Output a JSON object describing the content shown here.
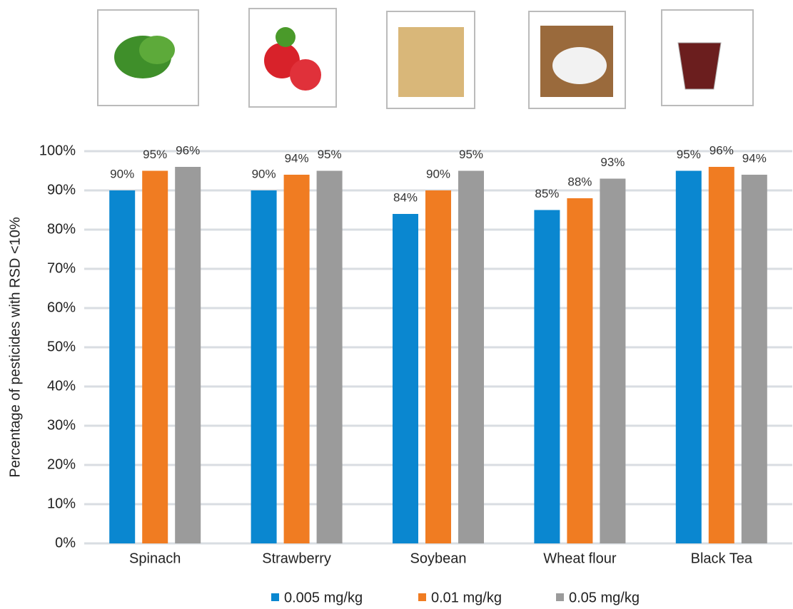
{
  "chart_data": {
    "type": "bar",
    "y_label": "Percentage of pesticides with RSD <10%",
    "categories": [
      "Spinach",
      "Strawberry",
      "Soybean",
      "Wheat flour",
      "Black Tea"
    ],
    "series": [
      {
        "name": "0.005 mg/kg",
        "color": "#0a87d0",
        "values": [
          90,
          90,
          84,
          85,
          95
        ],
        "value_labels": [
          "90%",
          "90%",
          "84%",
          "85%",
          "95%"
        ]
      },
      {
        "name": "0.01 mg/kg",
        "color": "#f07c22",
        "values": [
          95,
          94,
          90,
          88,
          96
        ],
        "value_labels": [
          "95%",
          "94%",
          "90%",
          "88%",
          "96%"
        ]
      },
      {
        "name": "0.05 mg/kg",
        "color": "#9b9b9b",
        "values": [
          96,
          95,
          95,
          93,
          94
        ],
        "value_labels": [
          "96%",
          "95%",
          "95%",
          "93%",
          "94%"
        ]
      }
    ],
    "ylim": [
      0,
      100
    ],
    "yticks": [
      {
        "value": 0,
        "label": "0%"
      },
      {
        "value": 10,
        "label": "10%"
      },
      {
        "value": 20,
        "label": "20%"
      },
      {
        "value": 30,
        "label": "30%"
      },
      {
        "value": 40,
        "label": "40%"
      },
      {
        "value": 50,
        "label": "50%"
      },
      {
        "value": 60,
        "label": "60%"
      },
      {
        "value": 70,
        "label": "70%"
      },
      {
        "value": 80,
        "label": "80%"
      },
      {
        "value": 90,
        "label": "90%"
      },
      {
        "value": 100,
        "label": "100%"
      }
    ],
    "grid": true
  }
}
